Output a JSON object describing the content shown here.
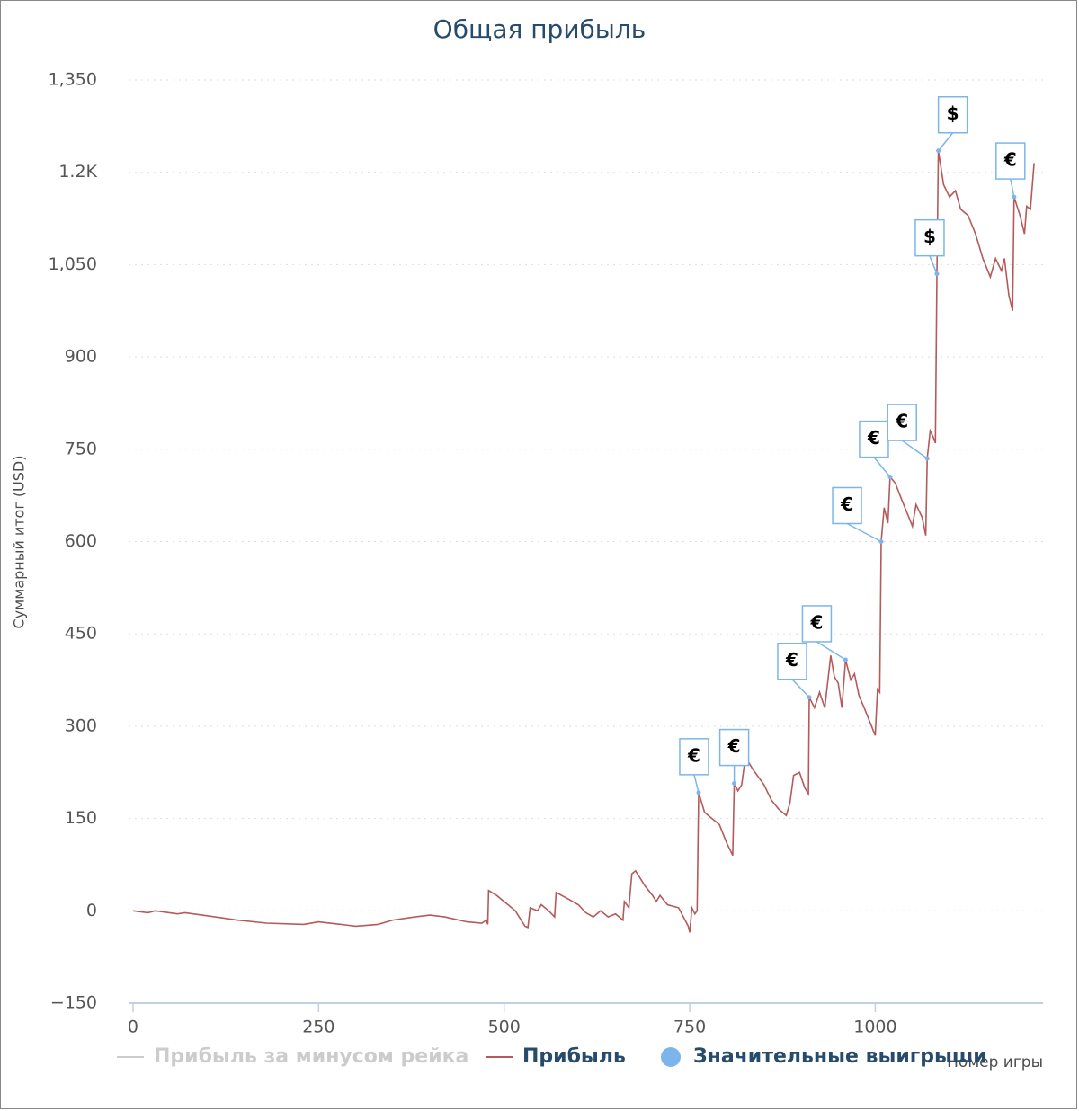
{
  "chart_data": {
    "type": "line",
    "title": "Общая прибыль",
    "y_label": "Суммарный итог (USD)",
    "x_label": "Номер игры",
    "xlim": [
      -6,
      1226
    ],
    "xticks": [
      0,
      250,
      500,
      750,
      1000
    ],
    "ylim": [
      -150,
      1350
    ],
    "yticks": [
      {
        "value": -150,
        "label": "−150"
      },
      0,
      150,
      300,
      450,
      600,
      750,
      900,
      {
        "value": 1050,
        "label": "1,050"
      },
      {
        "value": 1200,
        "label": "1.2K"
      },
      {
        "value": 1350,
        "label": "1,350"
      }
    ],
    "grid": true,
    "series": [
      {
        "name": "Прибыль за минусом рейка",
        "color": "#cccccc",
        "visible": false
      },
      {
        "name": "Прибыль",
        "color": "#b55a5a",
        "x": [
          0,
          20,
          30,
          60,
          70,
          100,
          140,
          180,
          230,
          250,
          280,
          300,
          330,
          350,
          380,
          400,
          420,
          450,
          470,
          476,
          478,
          479,
          490,
          500,
          515,
          528,
          532,
          535,
          545,
          550,
          560,
          568,
          570,
          585,
          600,
          610,
          620,
          630,
          640,
          650,
          660,
          662,
          668,
          672,
          677,
          690,
          700,
          705,
          710,
          720,
          735,
          748,
          750,
          753,
          757,
          760,
          762,
          770,
          780,
          790,
          800,
          808,
          810,
          815,
          820,
          825,
          835,
          850,
          860,
          870,
          880,
          885,
          890,
          898,
          905,
          910,
          911,
          918,
          925,
          932,
          940,
          945,
          950,
          955,
          960,
          967,
          972,
          978,
          985,
          995,
          1000,
          1003,
          1006,
          1008,
          1012,
          1017,
          1020,
          1027,
          1035,
          1045,
          1050,
          1055,
          1063,
          1068,
          1070,
          1074,
          1078,
          1081,
          1083,
          1085,
          1092,
          1100,
          1108,
          1115,
          1125,
          1135,
          1145,
          1155,
          1162,
          1170,
          1174,
          1180,
          1185,
          1187,
          1195,
          1201,
          1204,
          1209,
          1214
        ],
        "values": [
          0,
          -3,
          0,
          -5,
          -3,
          -8,
          -15,
          -20,
          -22,
          -18,
          -22,
          -25,
          -22,
          -15,
          -10,
          -7,
          -10,
          -18,
          -20,
          -15,
          -22,
          33,
          25,
          15,
          0,
          -25,
          -27,
          5,
          0,
          10,
          0,
          -10,
          30,
          20,
          10,
          -3,
          -10,
          0,
          -10,
          -5,
          -15,
          15,
          5,
          60,
          65,
          40,
          25,
          15,
          25,
          10,
          5,
          -25,
          -35,
          5,
          -5,
          0,
          192,
          160,
          150,
          140,
          110,
          90,
          207,
          195,
          205,
          250,
          230,
          205,
          180,
          165,
          155,
          175,
          220,
          225,
          200,
          190,
          347,
          330,
          355,
          330,
          415,
          380,
          370,
          330,
          408,
          375,
          385,
          350,
          330,
          300,
          285,
          360,
          355,
          600,
          655,
          630,
          705,
          695,
          670,
          640,
          625,
          660,
          640,
          610,
          735,
          780,
          770,
          760,
          1035,
          1235,
          1180,
          1160,
          1170,
          1140,
          1130,
          1100,
          1060,
          1030,
          1060,
          1040,
          1060,
          1000,
          975,
          1160,
          1130,
          1100,
          1145,
          1140,
          1215
        ]
      },
      {
        "name": "Значительные выигрыши",
        "color": "#7cb5ec",
        "type": "scatter",
        "x": [
          762,
          810,
          911,
          960,
          1008,
          1020,
          1070,
          1083,
          1085,
          1187
        ],
        "values": [
          192,
          207,
          347,
          408,
          600,
          705,
          735,
          1035,
          1235,
          1160
        ],
        "labels": [
          "€",
          "€",
          "€",
          "€",
          "€",
          "€",
          "€",
          "$",
          "$",
          "€"
        ]
      }
    ]
  }
}
